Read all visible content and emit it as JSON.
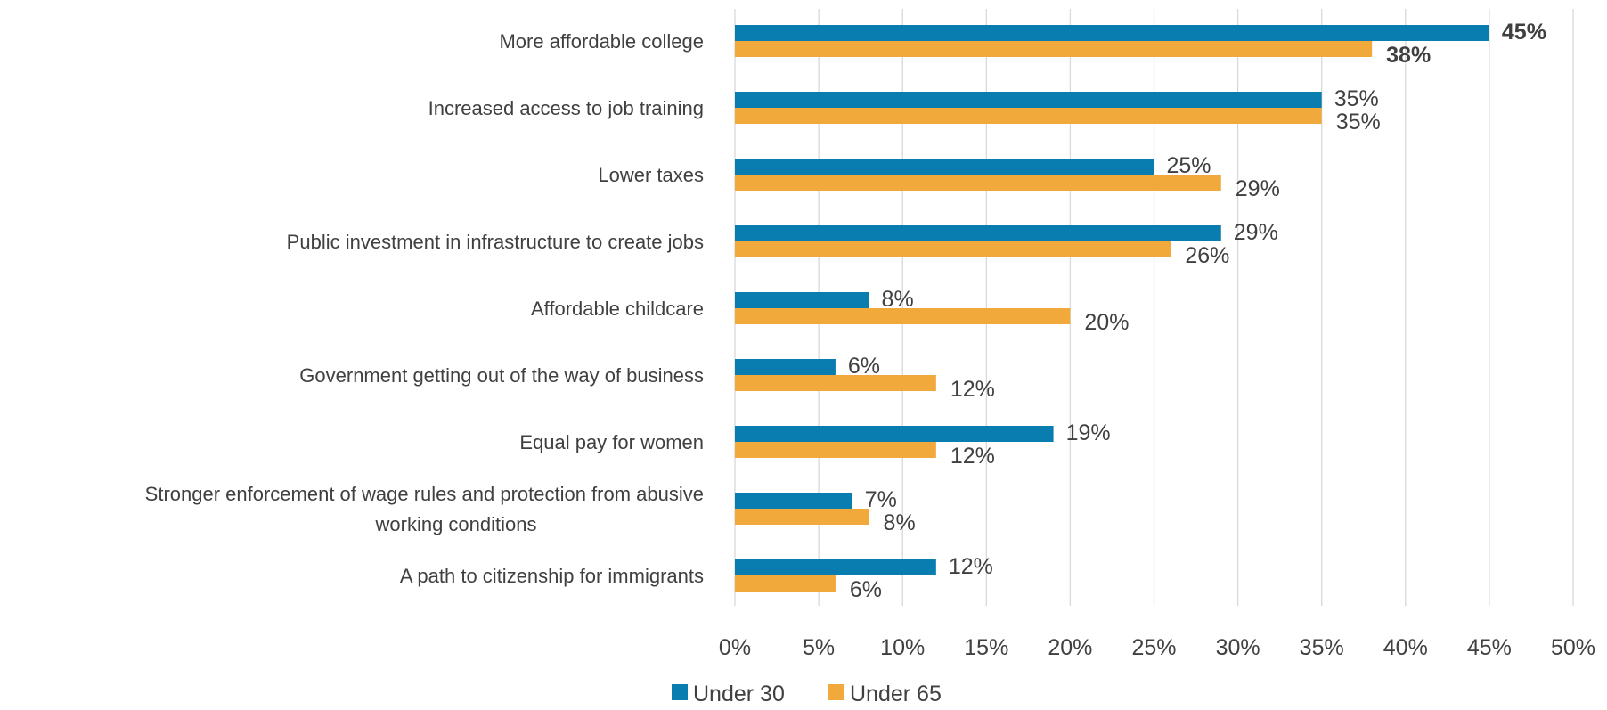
{
  "chart_data": {
    "type": "bar",
    "orientation": "horizontal",
    "categories": [
      "More affordable college",
      "Increased access to job training",
      "Lower taxes",
      "Public investment in infrastructure to create jobs",
      "Affordable childcare",
      "Government getting out of the way of business",
      "Equal pay for women",
      "Stronger enforcement of wage rules and protection from abusive working conditions",
      "A path to citizenship for immigrants"
    ],
    "category_lines": [
      [
        "More affordable college"
      ],
      [
        "Increased access to job training"
      ],
      [
        "Lower taxes"
      ],
      [
        "Public investment in infrastructure to create jobs"
      ],
      [
        "Affordable childcare"
      ],
      [
        "Government getting out of the way of business"
      ],
      [
        "Equal pay for women"
      ],
      [
        "Stronger enforcement of wage rules and protection from abusive",
        "working conditions"
      ],
      [
        "A path to citizenship for immigrants"
      ]
    ],
    "series": [
      {
        "name": "Under 30",
        "color": "#0a7db0",
        "values": [
          45,
          35,
          25,
          29,
          8,
          6,
          19,
          7,
          12
        ],
        "labels": [
          "45%",
          "35%",
          "25%",
          "29%",
          "8%",
          "6%",
          "19%",
          "7%",
          "12%"
        ]
      },
      {
        "name": "Under 65",
        "color": "#f2a93b",
        "values": [
          38,
          35,
          29,
          26,
          20,
          12,
          12,
          8,
          6
        ],
        "labels": [
          "38%",
          "35%",
          "29%",
          "26%",
          "20%",
          "12%",
          "12%",
          "8%",
          "6%"
        ]
      }
    ],
    "bold_category_index": 0,
    "xlim": [
      0,
      50
    ],
    "x_ticks": [
      "0%",
      "5%",
      "10%",
      "15%",
      "20%",
      "25%",
      "30%",
      "35%",
      "40%",
      "45%",
      "50%"
    ],
    "grid": true,
    "legend_position": "bottom",
    "title": "",
    "xlabel": "",
    "ylabel": ""
  }
}
